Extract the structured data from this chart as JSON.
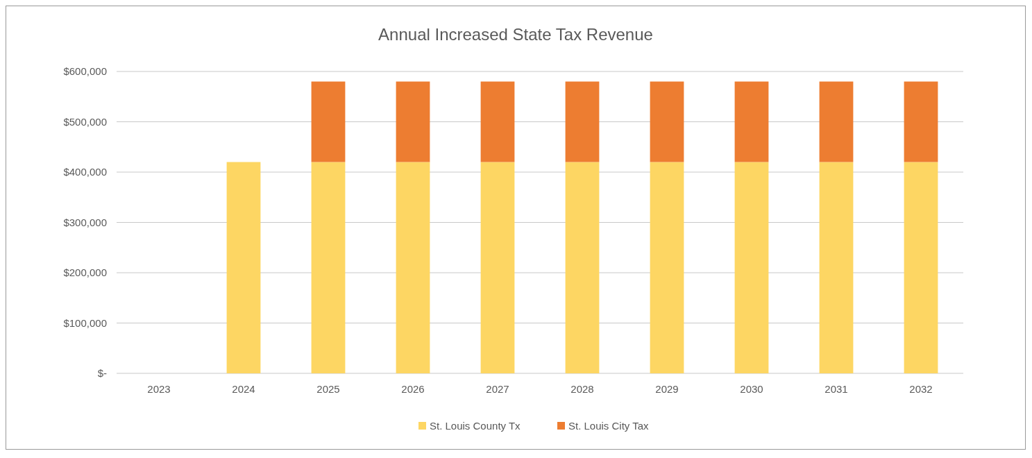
{
  "chart_data": {
    "type": "bar",
    "title": "Annual Increased State Tax Revenue",
    "categories": [
      "2023",
      "2024",
      "2025",
      "2026",
      "2027",
      "2028",
      "2029",
      "2030",
      "2031",
      "2032"
    ],
    "stacked": true,
    "series": [
      {
        "name": "St. Louis County Tx",
        "color": "#fdd663",
        "values": [
          0,
          420000,
          420000,
          420000,
          420000,
          420000,
          420000,
          420000,
          420000,
          420000
        ]
      },
      {
        "name": "St. Louis City Tax",
        "color": "#ed7d31",
        "values": [
          0,
          0,
          160000,
          160000,
          160000,
          160000,
          160000,
          160000,
          160000,
          160000
        ]
      }
    ],
    "ylim": [
      0,
      600000
    ],
    "yticks": [
      {
        "value": 0,
        "label": "$-"
      },
      {
        "value": 100000,
        "label": "$100,000"
      },
      {
        "value": 200000,
        "label": "$200,000"
      },
      {
        "value": 300000,
        "label": "$300,000"
      },
      {
        "value": 400000,
        "label": "$400,000"
      },
      {
        "value": 500000,
        "label": "$500,000"
      },
      {
        "value": 600000,
        "label": "$600,000"
      }
    ],
    "grid": "y",
    "legend": "bottom"
  }
}
